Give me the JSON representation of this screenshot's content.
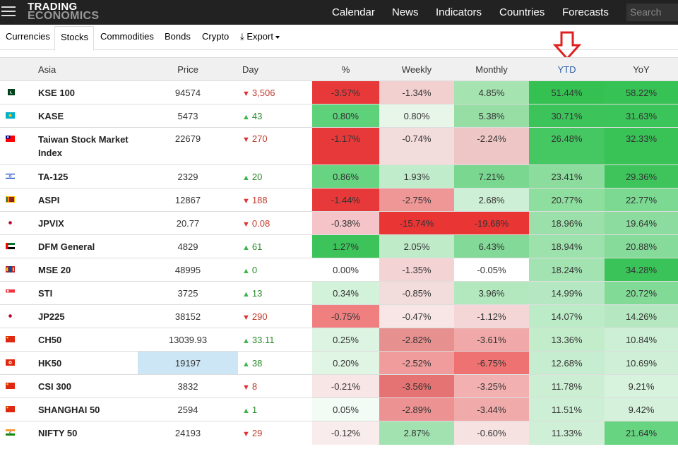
{
  "header": {
    "logo_line1": "TRADING",
    "logo_line2": "ECONOMICS",
    "nav": [
      "Calendar",
      "News",
      "Indicators",
      "Countries",
      "Forecasts"
    ],
    "search_placeholder": "Search"
  },
  "tabs": [
    "Currencies",
    "Stocks",
    "Commodities",
    "Bonds",
    "Crypto",
    "Export"
  ],
  "active_tab": "Stocks",
  "table": {
    "columns": [
      "Asia",
      "Price",
      "Day",
      "%",
      "Weekly",
      "Monthly",
      "YTD",
      "YoY"
    ],
    "rows": [
      {
        "name": "KSE 100",
        "flag": "pk",
        "price": "94574",
        "dir": "down",
        "day": "3,506",
        "pct": "-3.57%",
        "weekly": "-1.34%",
        "monthly": "4.85%",
        "ytd": "51.44%",
        "yoy": "58.22%",
        "c": [
          "#e8393a",
          "#f2d0d0",
          "#a5e3b0",
          "#34c152",
          "#36c254"
        ]
      },
      {
        "name": "KASE",
        "flag": "kz",
        "price": "5473",
        "dir": "up",
        "day": "43",
        "pct": "0.80%",
        "weekly": "0.80%",
        "monthly": "5.38%",
        "ytd": "30.71%",
        "yoy": "31.63%",
        "c": [
          "#5ed27a",
          "#e8f6ea",
          "#97dea5",
          "#3cc45a",
          "#3bc459"
        ]
      },
      {
        "name": "Taiwan Stock Market Index",
        "flag": "tw",
        "price": "22679",
        "dir": "down",
        "day": "270",
        "pct": "-1.17%",
        "weekly": "-0.74%",
        "monthly": "-2.24%",
        "ytd": "26.48%",
        "yoy": "32.33%",
        "c": [
          "#e8393a",
          "#f2dcdc",
          "#eec6c6",
          "#45c762",
          "#39c357"
        ],
        "tall": true
      },
      {
        "name": "TA-125",
        "flag": "il",
        "price": "2329",
        "dir": "up",
        "day": "20",
        "pct": "0.86%",
        "weekly": "1.93%",
        "monthly": "7.21%",
        "ytd": "23.41%",
        "yoy": "29.36%",
        "c": [
          "#66d480",
          "#c1eccb",
          "#79d78f",
          "#8bdc9d",
          "#3fc45c"
        ]
      },
      {
        "name": "ASPI",
        "flag": "lk",
        "price": "12867",
        "dir": "down",
        "day": "188",
        "pct": "-1.44%",
        "weekly": "-2.75%",
        "monthly": "2.68%",
        "ytd": "20.77%",
        "yoy": "22.77%",
        "c": [
          "#e8393a",
          "#ef9696",
          "#ccefd5",
          "#8ede9f",
          "#7bd992"
        ]
      },
      {
        "name": "JPVIX",
        "flag": "jp",
        "price": "20.77",
        "dir": "down",
        "day": "0.08",
        "pct": "-0.38%",
        "weekly": "-15.74%",
        "monthly": "-19.68%",
        "ytd": "18.96%",
        "yoy": "19.64%",
        "c": [
          "#f5c4c8",
          "#ea3535",
          "#ea3535",
          "#9be0aa",
          "#8bdc9e"
        ]
      },
      {
        "name": "DFM General",
        "flag": "ae",
        "price": "4829",
        "dir": "up",
        "day": "61",
        "pct": "1.27%",
        "weekly": "2.05%",
        "monthly": "6.43%",
        "ytd": "18.94%",
        "yoy": "20.88%",
        "c": [
          "#3cc45a",
          "#c0ebc9",
          "#83da98",
          "#9de1ad",
          "#86db9b"
        ]
      },
      {
        "name": "MSE 20",
        "flag": "mn",
        "price": "48995",
        "dir": "up",
        "day": "0",
        "pct": "0.00%",
        "weekly": "-1.35%",
        "monthly": "-0.05%",
        "ytd": "18.24%",
        "yoy": "34.28%",
        "c": [
          "#ffffff",
          "#f3d3d3",
          "#ffffff",
          "#a3e3b2",
          "#3ac358"
        ]
      },
      {
        "name": "STI",
        "flag": "sg",
        "price": "3725",
        "dir": "up",
        "day": "13",
        "pct": "0.34%",
        "weekly": "-0.85%",
        "monthly": "3.96%",
        "ytd": "14.99%",
        "yoy": "20.72%",
        "c": [
          "#d3f2da",
          "#f3dcdc",
          "#b3e8bf",
          "#b5e8c2",
          "#82da97"
        ]
      },
      {
        "name": "JP225",
        "flag": "jp",
        "price": "38152",
        "dir": "down",
        "day": "290",
        "pct": "-0.75%",
        "weekly": "-0.47%",
        "monthly": "-1.12%",
        "ytd": "14.07%",
        "yoy": "14.26%",
        "c": [
          "#f08080",
          "#f8e6e6",
          "#f5d6d6",
          "#bcebc7",
          "#b5e8c0"
        ]
      },
      {
        "name": "CH50",
        "flag": "cn",
        "price": "13039.93",
        "dir": "up",
        "day": "33.11",
        "pct": "0.25%",
        "weekly": "-2.82%",
        "monthly": "-3.61%",
        "ytd": "13.36%",
        "yoy": "10.84%",
        "c": [
          "#dcf4e1",
          "#e69090",
          "#f0a8a8",
          "#c2ecca",
          "#cdefd5"
        ]
      },
      {
        "name": "HK50",
        "flag": "hk",
        "price": "19197",
        "dir": "up",
        "day": "38",
        "pct": "0.20%",
        "weekly": "-2.52%",
        "monthly": "-6.75%",
        "ytd": "12.68%",
        "yoy": "10.69%",
        "c": [
          "#e1f5e5",
          "#f09c9c",
          "#ee7272",
          "#c7edd0",
          "#cff0d7"
        ],
        "hl": true
      },
      {
        "name": "CSI 300",
        "flag": "cn",
        "price": "3832",
        "dir": "down",
        "day": "8",
        "pct": "-0.21%",
        "weekly": "-3.56%",
        "monthly": "-3.25%",
        "ytd": "11.78%",
        "yoy": "9.21%",
        "c": [
          "#f8e6e6",
          "#e57373",
          "#f2b0b0",
          "#ccefd4",
          "#d7f2dd"
        ]
      },
      {
        "name": "SHANGHAI 50",
        "flag": "cn",
        "price": "2594",
        "dir": "up",
        "day": "1",
        "pct": "0.05%",
        "weekly": "-2.89%",
        "monthly": "-3.44%",
        "ytd": "11.51%",
        "yoy": "9.42%",
        "c": [
          "#f2fbf4",
          "#ec9292",
          "#f1aaaa",
          "#cdefd5",
          "#d5f1db"
        ]
      },
      {
        "name": "NIFTY 50",
        "flag": "in",
        "price": "24193",
        "dir": "down",
        "day": "29",
        "pct": "-0.12%",
        "weekly": "2.87%",
        "monthly": "-0.60%",
        "ytd": "11.33%",
        "yoy": "21.64%",
        "c": [
          "#f9ecec",
          "#a1e2b0",
          "#f7e2e2",
          "#cfefd7",
          "#66d480"
        ]
      }
    ]
  }
}
